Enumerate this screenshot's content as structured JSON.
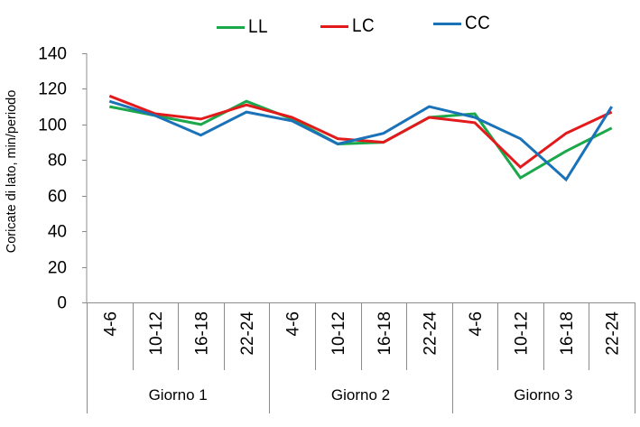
{
  "chart_data": {
    "type": "line",
    "title": "",
    "xlabel": "",
    "ylabel": "Coricate di lato, min/periodo",
    "ylim": [
      0,
      140
    ],
    "yticks": [
      0,
      20,
      40,
      60,
      80,
      100,
      120,
      140
    ],
    "grid": false,
    "legend_position": "top",
    "groups": [
      {
        "label": "Giorno 1",
        "categories": [
          "4-6",
          "10-12",
          "16-18",
          "22-24"
        ]
      },
      {
        "label": "Giorno 2",
        "categories": [
          "4-6",
          "10-12",
          "16-18",
          "22-24"
        ]
      },
      {
        "label": "Giorno 3",
        "categories": [
          "4-6",
          "10-12",
          "16-18",
          "22-24"
        ]
      }
    ],
    "categories": [
      "4-6",
      "10-12",
      "16-18",
      "22-24",
      "4-6",
      "10-12",
      "16-18",
      "22-24",
      "4-6",
      "10-12",
      "16-18",
      "22-24"
    ],
    "series": [
      {
        "name": "LL",
        "color": "#1BA84A",
        "values": [
          110,
          105,
          100,
          113,
          103,
          89,
          90,
          104,
          106,
          70,
          85,
          98
        ]
      },
      {
        "name": "LC",
        "color": "#E31A1C",
        "values": [
          116,
          106,
          103,
          111,
          104,
          92,
          90,
          104,
          101,
          76,
          95,
          107
        ]
      },
      {
        "name": "CC",
        "color": "#1A72B8",
        "values": [
          113,
          105,
          94,
          107,
          102,
          89,
          95,
          110,
          104,
          92,
          69,
          110
        ]
      }
    ]
  },
  "legend": {
    "items": [
      {
        "label": "LL",
        "color": "#1BA84A"
      },
      {
        "label": "LC",
        "color": "#E31A1C"
      },
      {
        "label": "CC",
        "color": "#1A72B8"
      }
    ]
  }
}
